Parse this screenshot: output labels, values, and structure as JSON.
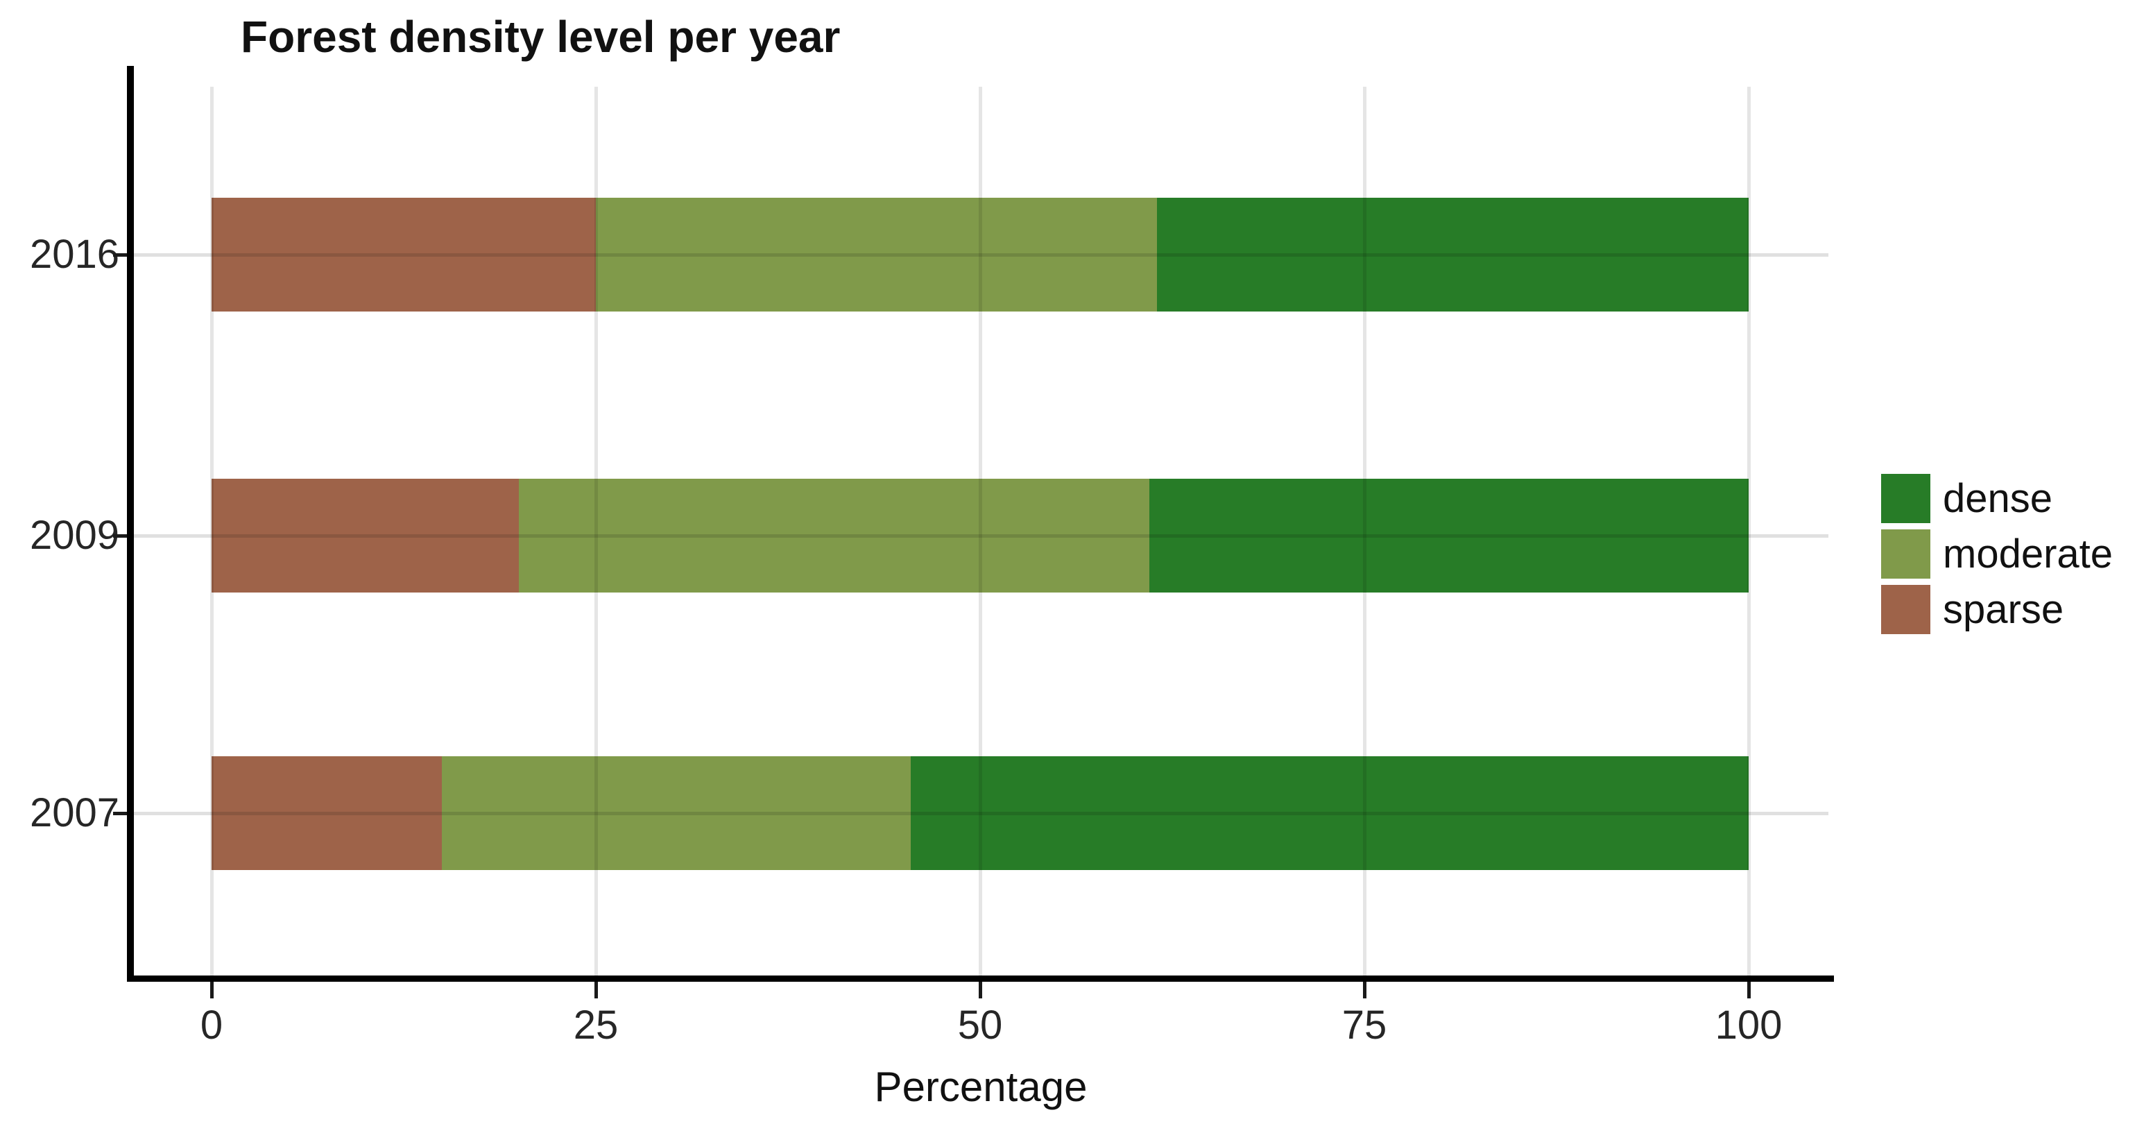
{
  "chart_data": {
    "type": "bar",
    "orientation": "horizontal",
    "stacked": true,
    "title": "Forest density level per year",
    "xlabel": "Percentage",
    "ylabel": "",
    "categories": [
      "2016",
      "2009",
      "2007"
    ],
    "x_ticks": [
      "0",
      "25",
      "50",
      "75",
      "100"
    ],
    "xlim": [
      0,
      100
    ],
    "series": [
      {
        "name": "sparse",
        "color": "#9e6349",
        "values": [
          25,
          20,
          15
        ]
      },
      {
        "name": "moderate",
        "color": "#809a4a",
        "values": [
          36.5,
          41,
          30.5
        ]
      },
      {
        "name": "dense",
        "color": "#277c27",
        "values": [
          38.5,
          39,
          54.5
        ]
      }
    ],
    "legend": {
      "position": "right",
      "entries": [
        "dense",
        "moderate",
        "sparse"
      ]
    },
    "grid": {
      "vertical_major": true,
      "horizontal_major": true,
      "minor": false
    },
    "colors": {
      "background": "#ffffff",
      "axis_line": "#000000",
      "gridline": "#e0e0e0",
      "text": "#111111"
    }
  }
}
